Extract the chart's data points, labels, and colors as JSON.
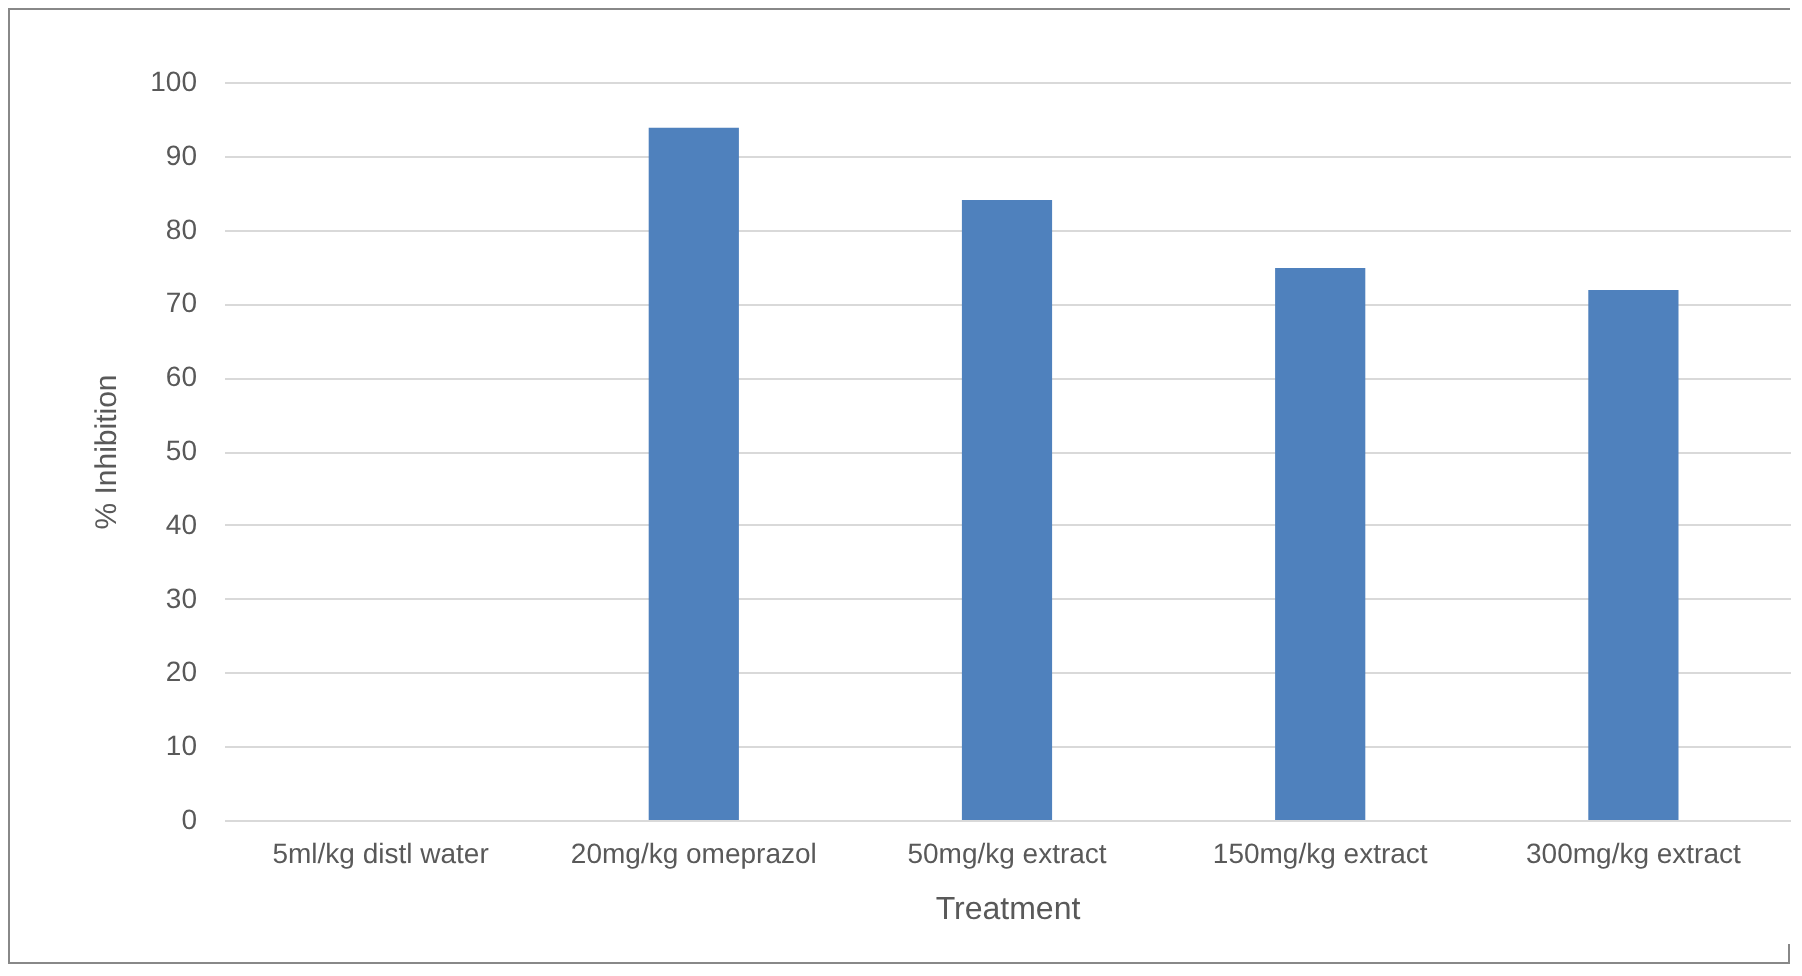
{
  "chart_data": {
    "type": "bar",
    "xlabel": "Treatment",
    "ylabel": "% Inhibition",
    "categories": [
      "5ml/kg distl water",
      "20mg/kg omeprazol",
      "50mg/kg extract",
      "150mg/kg extract",
      "300mg/kg extract"
    ],
    "values": [
      0,
      93.8,
      84,
      74.8,
      71.8
    ],
    "color": "#4f81bd",
    "ylim": [
      0,
      100
    ],
    "yticks": [
      0,
      10,
      20,
      30,
      40,
      50,
      60,
      70,
      80,
      90,
      100
    ],
    "grid": "y"
  }
}
